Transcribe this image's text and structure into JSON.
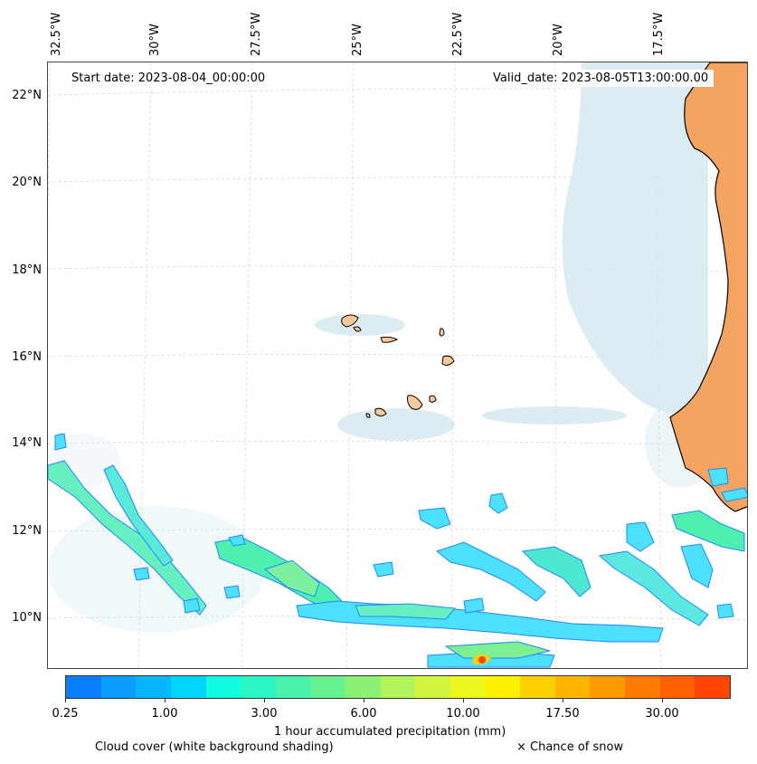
{
  "header": {
    "start_date": "Start date: 2023-08-04_00:00:00",
    "valid_date": "Valid_date: 2023-08-05T13:00:00.00"
  },
  "axes": {
    "longitude_labels": [
      "32.5°W",
      "30°W",
      "27.5°W",
      "25°W",
      "22.5°W",
      "20°W",
      "17.5°W"
    ],
    "latitude_labels": [
      "22°N",
      "20°N",
      "18°N",
      "16°N",
      "14°N",
      "12°N",
      "10°N"
    ]
  },
  "colorbar": {
    "tick_labels": [
      "0.25",
      "1.00",
      "3.00",
      "6.00",
      "10.00",
      "17.50",
      "30.00"
    ],
    "label": "1 hour accumulated precipitation (mm)",
    "colors": [
      "#0a7dff",
      "#0a9cff",
      "#08b5ff",
      "#00d4ff",
      "#10fbe0",
      "#2af6c4",
      "#4af2aa",
      "#66f090",
      "#8cf074",
      "#b0f45a",
      "#d2f640",
      "#eaf81e",
      "#fdf000",
      "#ffd000",
      "#ffb400",
      "#ff9a00",
      "#ff7a00",
      "#ff6000",
      "#ff4400"
    ]
  },
  "legend": {
    "cloud_cover": "Cloud cover (white background shading)",
    "snow": "× Chance of snow"
  },
  "map_colors": {
    "land": "#f4a460",
    "cloud": "#cfe6ee",
    "coast": "#000000"
  }
}
